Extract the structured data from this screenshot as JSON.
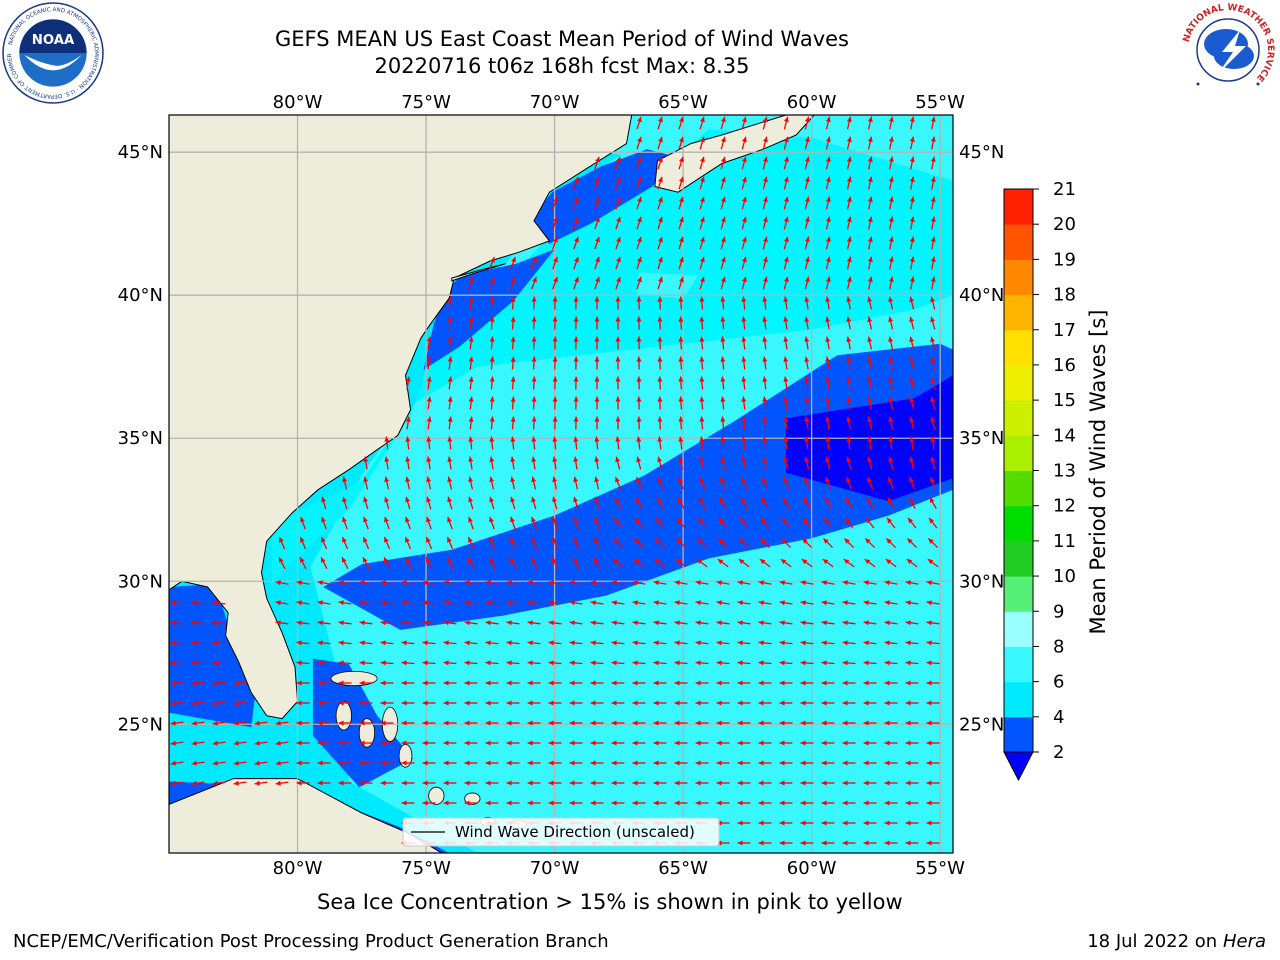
{
  "header": {
    "title_line1": "GEFS MEAN US East Coast Mean Period of Wind Waves",
    "title_line2": "20220716 t06z 168h fcst   Max: 8.35"
  },
  "logos": {
    "left": "noaa-logo",
    "left_text": "NOAA",
    "left_ring_text": "NATIONAL OCEANIC AND ATMOSPHERIC ADMINISTRATION · U.S. DEPARTMENT OF COMMERCE",
    "right": "nws-logo",
    "right_ring_text": "NATIONAL WEATHER SERVICE"
  },
  "map": {
    "lon_labels": [
      "80°W",
      "75°W",
      "70°W",
      "65°W",
      "60°W",
      "55°W"
    ],
    "lat_labels": [
      "45°N",
      "40°N",
      "35°N",
      "30°N",
      "25°N"
    ],
    "lon_ticks": [
      -80,
      -75,
      -70,
      -65,
      -60,
      -55
    ],
    "lat_ticks": [
      45,
      40,
      35,
      30,
      25
    ],
    "lon_range": [
      -85,
      -54.5
    ],
    "lat_range": [
      20.5,
      46.3
    ],
    "grid": true,
    "land_color": "#eeeddc",
    "arrow_color": "#ff0000",
    "legend_label": "Wind Wave Direction (unscaled)",
    "legend_placement": "bottom-center"
  },
  "colorbar": {
    "label": "Mean Period of Wind Waves [s]",
    "ticks": [
      "2",
      "4",
      "6",
      "8",
      "9",
      "10",
      "11",
      "12",
      "13",
      "14",
      "15",
      "16",
      "17",
      "18",
      "19",
      "20",
      "21"
    ],
    "colors": [
      "#0055ff",
      "#00eaff",
      "#39f7ff",
      "#99ffff",
      "#55ee77",
      "#22cc22",
      "#00dd00",
      "#55dd00",
      "#aaee00",
      "#ccf000",
      "#eeee00",
      "#ffe000",
      "#ffb400",
      "#ff8800",
      "#ff5500",
      "#ff2200"
    ],
    "under_color": "#0000ff"
  },
  "chart_data": {
    "type": "heatmap",
    "title": "GEFS MEAN US East Coast Mean Period of Wind Waves",
    "colorbar_label": "Mean Period of Wind Waves [s]",
    "levels": [
      2,
      4,
      6,
      8,
      9,
      10,
      11,
      12,
      13,
      14,
      15,
      16,
      17,
      18,
      19,
      20,
      21
    ],
    "max": 8.35,
    "regions": [
      {
        "band": "2-4",
        "lon_lat": [
          [
            -59,
            37.9
          ],
          [
            -55,
            38.3
          ],
          [
            -54.5,
            38.1
          ],
          [
            -54.5,
            33.2
          ],
          [
            -57,
            32.3
          ],
          [
            -60,
            31.5
          ],
          [
            -64,
            30.8
          ],
          [
            -68,
            29.5
          ],
          [
            -72,
            28.8
          ],
          [
            -76,
            28.3
          ],
          [
            -79,
            29.8
          ],
          [
            -77.5,
            30.6
          ],
          [
            -74,
            31.1
          ],
          [
            -70,
            32.3
          ],
          [
            -66.5,
            33.7
          ],
          [
            -63,
            35.6
          ]
        ]
      },
      {
        "band": "under-2",
        "lon_lat": [
          [
            -61,
            35.7
          ],
          [
            -56,
            36.4
          ],
          [
            -54.5,
            37.2
          ],
          [
            -54.5,
            33.6
          ],
          [
            -57,
            32.8
          ],
          [
            -61,
            33.8
          ]
        ]
      },
      {
        "band": "2-4",
        "lon_lat": [
          [
            -71,
            42.6
          ],
          [
            -70.1,
            43.6
          ],
          [
            -68.2,
            44.5
          ],
          [
            -66.4,
            45.1
          ],
          [
            -65.1,
            44.8
          ],
          [
            -66.2,
            43.8
          ],
          [
            -68.6,
            42.5
          ],
          [
            -70.2,
            41.8
          ]
        ]
      },
      {
        "band": "2-4",
        "lon_lat": [
          [
            -74.2,
            40.2
          ],
          [
            -73.6,
            40.7
          ],
          [
            -71.5,
            41.1
          ],
          [
            -70,
            41.6
          ],
          [
            -71.6,
            39.8
          ],
          [
            -73.7,
            38.2
          ],
          [
            -75.1,
            37.4
          ],
          [
            -74.7,
            39
          ]
        ]
      },
      {
        "band": "2-4",
        "lon_lat": [
          [
            -85,
            29.8
          ],
          [
            -83.2,
            29.9
          ],
          [
            -82.7,
            28.5
          ],
          [
            -81.6,
            26.4
          ],
          [
            -81.8,
            24.9
          ],
          [
            -85,
            25.4
          ]
        ]
      },
      {
        "band": "2-4",
        "lon_lat": [
          [
            -79.4,
            27.3
          ],
          [
            -78,
            27.1
          ],
          [
            -76.9,
            25.3
          ],
          [
            -75.5,
            23.8
          ],
          [
            -77.6,
            22.8
          ],
          [
            -79.4,
            24.6
          ]
        ]
      },
      {
        "band": "2-4",
        "lon_lat": [
          [
            -85,
            23
          ],
          [
            -80,
            22.8
          ],
          [
            -76,
            21.4
          ],
          [
            -74.1,
            20.5
          ],
          [
            -85,
            20.5
          ]
        ]
      },
      {
        "band": "6-8",
        "lon_lat": [
          [
            -71,
            26.1
          ],
          [
            -66.5,
            26.4
          ],
          [
            -64.5,
            25
          ],
          [
            -63.7,
            21.8
          ],
          [
            -66.5,
            20.9
          ],
          [
            -71.5,
            21.8
          ],
          [
            -72.4,
            24.1
          ]
        ]
      },
      {
        "band": "6-8",
        "lon_lat": [
          [
            -66.7,
            40.8
          ],
          [
            -64.4,
            40.7
          ],
          [
            -65,
            39.9
          ],
          [
            -66.8,
            40
          ]
        ]
      }
    ],
    "wind_wave_direction": [
      {
        "region": "north of 40°N",
        "direction": "toward north / northeast"
      },
      {
        "region": "35°N-40°N",
        "direction": "toward north"
      },
      {
        "region": "30°N-35°N near coast",
        "direction": "toward northwest"
      },
      {
        "region": "south of 30°N",
        "direction": "toward west"
      }
    ]
  },
  "footer": {
    "caption": "Sea Ice Concentration > 15% is shown in pink to yellow",
    "left": "NCEP/EMC/Verification Post Processing Product Generation Branch",
    "right_prefix": "18 Jul 2022 on ",
    "right_machine": "Hera"
  }
}
